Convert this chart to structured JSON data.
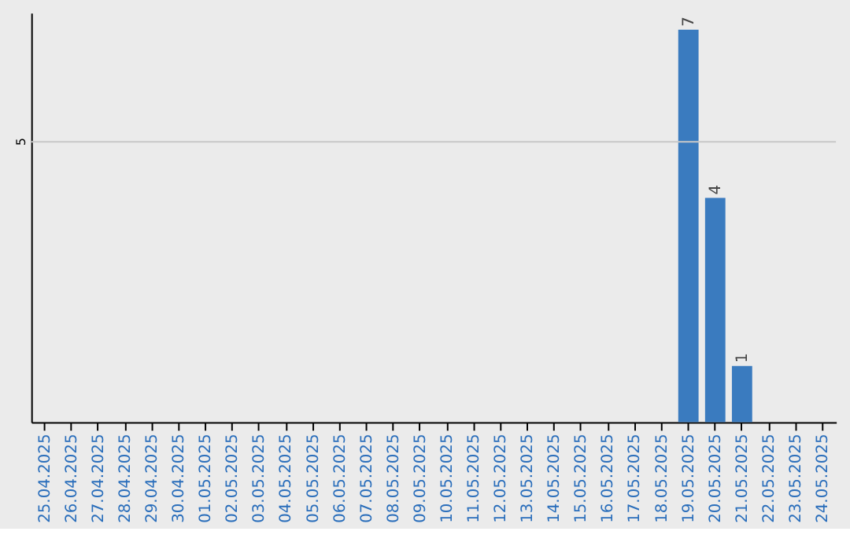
{
  "chart_data": {
    "type": "bar",
    "ylim": [
      0,
      7.3
    ],
    "categories": [
      "25.04.2025",
      "26.04.2025",
      "27.04.2025",
      "28.04.2025",
      "29.04.2025",
      "30.04.2025",
      "01.05.2025",
      "02.05.2025",
      "03.05.2025",
      "04.05.2025",
      "05.05.2025",
      "06.05.2025",
      "07.05.2025",
      "08.05.2025",
      "09.05.2025",
      "10.05.2025",
      "11.05.2025",
      "12.05.2025",
      "13.05.2025",
      "14.05.2025",
      "15.05.2025",
      "16.05.2025",
      "17.05.2025",
      "18.05.2025",
      "19.05.2025",
      "20.05.2025",
      "21.05.2025",
      "22.05.2025",
      "23.05.2025",
      "24.05.2025"
    ],
    "values": [
      null,
      null,
      null,
      null,
      null,
      null,
      null,
      null,
      null,
      null,
      null,
      null,
      null,
      null,
      null,
      null,
      null,
      null,
      null,
      null,
      null,
      null,
      null,
      null,
      7,
      4,
      1,
      null,
      null,
      null
    ],
    "data_labels": true,
    "color": "#3a7bbf",
    "ref_lines": [
      {
        "axis": "y",
        "value": 5,
        "label": "5",
        "color": "#c8c8c8"
      }
    ]
  }
}
